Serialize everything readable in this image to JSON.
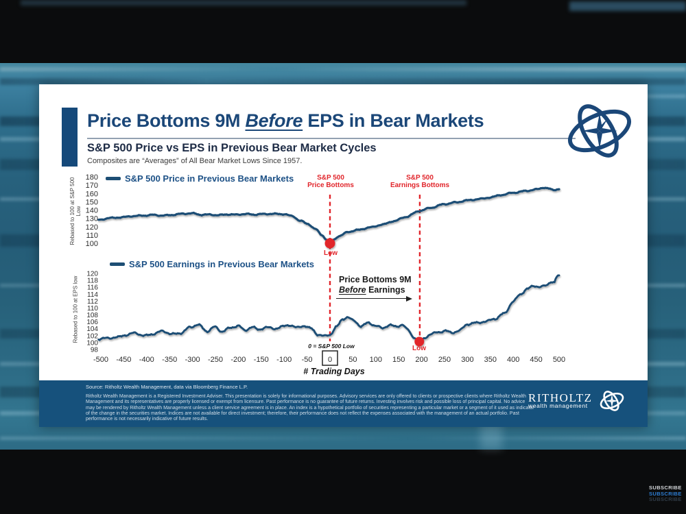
{
  "slide": {
    "title_pre": "Price Bottoms 9M ",
    "title_em": "Before",
    "title_post": " EPS in Bear Markets",
    "subtitle": "S&P 500 Price vs EPS in Previous Bear Market Cycles",
    "caption": "Composites are “Averages” of All Bear Market Lows Since 1957."
  },
  "colors": {
    "navy": "#1b4778",
    "line": "#1d4e74",
    "red": "#e1252b",
    "legend_text": "#1d5186",
    "footer_bg": "#16517c",
    "accent_bar": "#15497a",
    "bg_teal": "#2c6a84"
  },
  "chart_data": {
    "type": "line",
    "xlabel": "# Trading Days",
    "x_ticks": [
      -500,
      -450,
      -400,
      -350,
      -300,
      -250,
      -200,
      -150,
      -100,
      -50,
      0,
      50,
      100,
      150,
      200,
      250,
      300,
      350,
      400,
      450,
      500
    ],
    "x_zero_note": "0 = S&P 500 Low",
    "annotation": {
      "line1": "Price Bottoms 9M",
      "line2_em": "Before",
      "line2_rest": " Earnings"
    },
    "events": [
      {
        "day": 0,
        "label_lines": [
          "S&P 500",
          "Price Bottoms"
        ]
      },
      {
        "day": 196,
        "label_lines": [
          "S&P 500",
          "Earnings Bottoms"
        ]
      }
    ],
    "charts": [
      {
        "name": "price",
        "legend": "S&P 500 Price in Previous Bear Markets",
        "ylabel": "Rebased to 100 at S&P 500 Low",
        "ylim": [
          100,
          180
        ],
        "yticks": [
          180,
          170,
          160,
          150,
          140,
          130,
          120,
          110,
          100
        ],
        "low": {
          "day": 0,
          "value": 100,
          "label": "Low"
        },
        "anchors": [
          [
            -505,
            128.5
          ],
          [
            -480,
            130.5
          ],
          [
            -455,
            131
          ],
          [
            -430,
            132.5
          ],
          [
            -405,
            133.5
          ],
          [
            -385,
            134.5
          ],
          [
            -365,
            133.6
          ],
          [
            -345,
            134.2
          ],
          [
            -320,
            135.4
          ],
          [
            -300,
            135.8
          ],
          [
            -280,
            134.2
          ],
          [
            -262,
            134.8
          ],
          [
            -245,
            134.1
          ],
          [
            -225,
            135
          ],
          [
            -205,
            134.4
          ],
          [
            -185,
            135
          ],
          [
            -165,
            134.3
          ],
          [
            -148,
            135.1
          ],
          [
            -125,
            135.7
          ],
          [
            -100,
            135.4
          ],
          [
            -82,
            132.8
          ],
          [
            -65,
            127
          ],
          [
            -48,
            123
          ],
          [
            -32,
            117
          ],
          [
            -18,
            110
          ],
          [
            -8,
            104.5
          ],
          [
            0,
            100
          ],
          [
            8,
            104.5
          ],
          [
            20,
            109
          ],
          [
            40,
            114
          ],
          [
            60,
            116
          ],
          [
            90,
            119
          ],
          [
            115,
            122.5
          ],
          [
            140,
            127
          ],
          [
            165,
            132
          ],
          [
            196,
            139
          ],
          [
            220,
            142.5
          ],
          [
            250,
            147
          ],
          [
            275,
            149.5
          ],
          [
            300,
            152
          ],
          [
            330,
            153.5
          ],
          [
            350,
            155
          ],
          [
            375,
            158
          ],
          [
            400,
            161
          ],
          [
            430,
            163.5
          ],
          [
            450,
            165
          ],
          [
            467,
            167
          ],
          [
            478,
            165.5
          ],
          [
            487,
            163.8
          ],
          [
            500,
            165
          ]
        ]
      },
      {
        "name": "earnings",
        "legend": "S&P 500 Earnings in Previous Bear Markets",
        "ylabel": "Rebased to 100 at EPS low",
        "ylim": [
          98,
          120
        ],
        "yticks": [
          120,
          118,
          116,
          114,
          112,
          110,
          108,
          106,
          104,
          102,
          100,
          98
        ],
        "low": {
          "day": 195,
          "value": 100.3,
          "label": "Low"
        },
        "anchors": [
          [
            -505,
            101
          ],
          [
            -485,
            101.2
          ],
          [
            -465,
            101.4
          ],
          [
            -445,
            102.2
          ],
          [
            -425,
            102.9
          ],
          [
            -405,
            102.1
          ],
          [
            -385,
            102.6
          ],
          [
            -365,
            103.3
          ],
          [
            -345,
            102.3
          ],
          [
            -325,
            102.7
          ],
          [
            -305,
            104.5
          ],
          [
            -288,
            105.3
          ],
          [
            -268,
            103.4
          ],
          [
            -252,
            104.6
          ],
          [
            -236,
            103.2
          ],
          [
            -218,
            104.1
          ],
          [
            -200,
            104.8
          ],
          [
            -186,
            103.4
          ],
          [
            -170,
            104.6
          ],
          [
            -156,
            103.8
          ],
          [
            -140,
            104.6
          ],
          [
            -122,
            104.1
          ],
          [
            -104,
            104.6
          ],
          [
            -88,
            105
          ],
          [
            -72,
            104.2
          ],
          [
            -56,
            104.8
          ],
          [
            -42,
            104.1
          ],
          [
            -26,
            102.4
          ],
          [
            -12,
            102
          ],
          [
            0,
            102.4
          ],
          [
            14,
            104.6
          ],
          [
            28,
            106.8
          ],
          [
            38,
            107.3
          ],
          [
            52,
            106.2
          ],
          [
            68,
            104.6
          ],
          [
            84,
            105.7
          ],
          [
            100,
            104.9
          ],
          [
            114,
            104.3
          ],
          [
            130,
            105.2
          ],
          [
            144,
            104.7
          ],
          [
            158,
            105.2
          ],
          [
            170,
            103.6
          ],
          [
            183,
            101.4
          ],
          [
            195,
            100.3
          ],
          [
            207,
            101.3
          ],
          [
            220,
            102.4
          ],
          [
            236,
            103.1
          ],
          [
            252,
            103.5
          ],
          [
            266,
            103
          ],
          [
            282,
            103.5
          ],
          [
            300,
            105.3
          ],
          [
            320,
            105.6
          ],
          [
            340,
            106
          ],
          [
            360,
            106.9
          ],
          [
            380,
            108.5
          ],
          [
            400,
            112
          ],
          [
            415,
            114
          ],
          [
            430,
            115.5
          ],
          [
            445,
            116.3
          ],
          [
            460,
            116
          ],
          [
            472,
            116.4
          ],
          [
            482,
            117.6
          ],
          [
            489,
            117.3
          ],
          [
            495,
            119
          ],
          [
            500,
            119.3
          ]
        ]
      }
    ]
  },
  "footer": {
    "source": "Source: Ritholtz Wealth Management, data via Bloomberg Finance L.P.",
    "disclaimer": "Ritholtz Wealth Management is a Registered Investment Adviser. This presentation is solely for informational purposes. Advisory services are only offered to clients or prospective clients where Ritholtz Wealth Management and its representatives are properly licensed or exempt from licensure. Past performance is no guarantee of future returns. Investing involves risk and possible loss of principal capital. No advice may be rendered by Ritholtz Wealth Management unless a client service agreement is in place. An index is a hypothetical portfolio of securities representing a particular market or a segment of it used as indicator of the change in the securities market. Indices are not available for direct investment; therefore, their performance does not reflect the expenses associated with the management of an actual portfolio. Past performance is not necessarily indicative of future results.",
    "brand_name": "RITHOLTZ",
    "brand_sub": "wealth management"
  },
  "subscribe": [
    "SUBSCRIBE",
    "SUBSCRIBE",
    "SUBSCRIBE"
  ]
}
